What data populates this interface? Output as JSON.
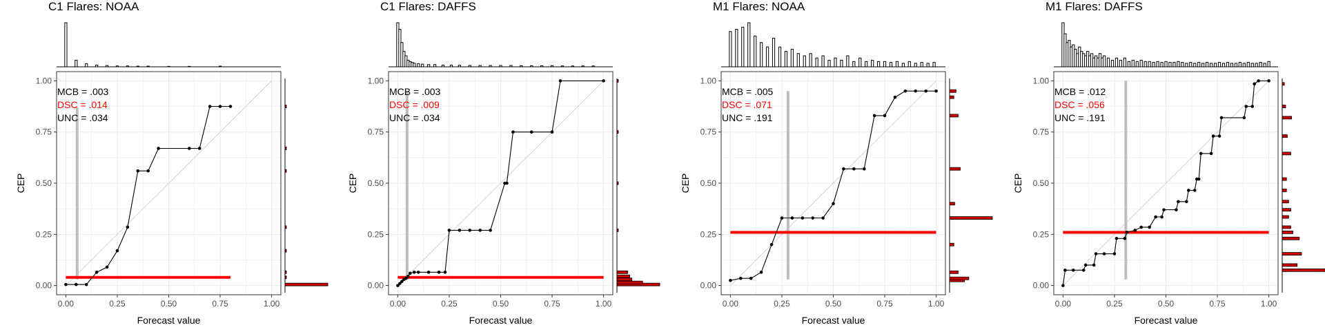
{
  "axis_labels": {
    "x": "Forecast value",
    "y": "CEP"
  },
  "tick_labels": [
    "0.00",
    "0.25",
    "0.50",
    "0.75",
    "1.00"
  ],
  "colors": {
    "stat_dsc": "#ff0000",
    "stat_other": "#000000",
    "reliability_line": "#000000",
    "reference_line": "#ff0000",
    "marker_line": "#bebebe",
    "hist_fill_side": "#cc0000",
    "grid": "#ebebeb"
  },
  "chart_data": [
    {
      "type": "line",
      "title": "C1 Flares: NOAA",
      "xlabel": "Forecast value",
      "ylabel": "CEP",
      "xlim": [
        0,
        1
      ],
      "ylim": [
        0,
        1
      ],
      "grid": true,
      "stats": {
        "mcb": "MCB = .003",
        "dsc": "DSC = .014",
        "unc": "UNC = .034"
      },
      "reference_line": {
        "value": 0.04,
        "x_range": [
          0.0,
          0.8
        ]
      },
      "marker": {
        "x": 0.055,
        "y_range": [
          0.03,
          0.87
        ]
      },
      "reliability_points": [
        [
          0.0,
          0.005
        ],
        [
          0.05,
          0.005
        ],
        [
          0.1,
          0.005
        ],
        [
          0.15,
          0.065
        ],
        [
          0.2,
          0.09
        ],
        [
          0.25,
          0.17
        ],
        [
          0.3,
          0.285
        ],
        [
          0.35,
          0.56
        ],
        [
          0.4,
          0.56
        ],
        [
          0.45,
          0.67
        ],
        [
          0.6,
          0.67
        ],
        [
          0.65,
          0.67
        ],
        [
          0.7,
          0.875
        ],
        [
          0.75,
          0.875
        ],
        [
          0.8,
          0.875
        ]
      ],
      "top_histogram": [
        [
          0.0,
          1.0
        ],
        [
          0.05,
          0.15
        ],
        [
          0.1,
          0.07
        ],
        [
          0.15,
          0.04
        ],
        [
          0.2,
          0.03
        ],
        [
          0.25,
          0.02
        ],
        [
          0.3,
          0.02
        ],
        [
          0.35,
          0.015
        ],
        [
          0.4,
          0.015
        ],
        [
          0.5,
          0.01
        ],
        [
          0.6,
          0.01
        ],
        [
          0.75,
          0.015
        ]
      ],
      "side_histogram": [
        [
          0.005,
          1.0
        ],
        [
          0.04,
          0.03
        ],
        [
          0.065,
          0.03
        ],
        [
          0.17,
          0.02
        ],
        [
          0.285,
          0.02
        ],
        [
          0.56,
          0.02
        ],
        [
          0.67,
          0.02
        ],
        [
          0.875,
          0.02
        ]
      ]
    },
    {
      "type": "line",
      "title": "C1 Flares: DAFFS",
      "xlabel": "Forecast value",
      "ylabel": "CEP",
      "xlim": [
        0,
        1
      ],
      "ylim": [
        0,
        1
      ],
      "grid": true,
      "stats": {
        "mcb": "MCB = .003",
        "dsc": "DSC = .009",
        "unc": "UNC = .034"
      },
      "reference_line": {
        "value": 0.04,
        "x_range": [
          0.0,
          1.0
        ]
      },
      "marker": {
        "x": 0.045,
        "y_range": [
          0.03,
          0.95
        ]
      },
      "reliability_points": [
        [
          0.0,
          0.0
        ],
        [
          0.01,
          0.01
        ],
        [
          0.02,
          0.02
        ],
        [
          0.03,
          0.03
        ],
        [
          0.04,
          0.035
        ],
        [
          0.05,
          0.045
        ],
        [
          0.06,
          0.06
        ],
        [
          0.08,
          0.065
        ],
        [
          0.1,
          0.065
        ],
        [
          0.15,
          0.065
        ],
        [
          0.2,
          0.065
        ],
        [
          0.23,
          0.065
        ],
        [
          0.25,
          0.27
        ],
        [
          0.3,
          0.27
        ],
        [
          0.35,
          0.27
        ],
        [
          0.4,
          0.27
        ],
        [
          0.45,
          0.27
        ],
        [
          0.52,
          0.5
        ],
        [
          0.53,
          0.5
        ],
        [
          0.56,
          0.75
        ],
        [
          0.65,
          0.75
        ],
        [
          0.75,
          0.75
        ],
        [
          0.79,
          1.0
        ],
        [
          1.0,
          1.0
        ]
      ],
      "top_histogram": [
        [
          0.0,
          1.0
        ],
        [
          0.01,
          0.85
        ],
        [
          0.02,
          0.55
        ],
        [
          0.03,
          0.35
        ],
        [
          0.04,
          0.25
        ],
        [
          0.05,
          0.15
        ],
        [
          0.06,
          0.12
        ],
        [
          0.07,
          0.1
        ],
        [
          0.08,
          0.08
        ],
        [
          0.1,
          0.07
        ],
        [
          0.12,
          0.06
        ],
        [
          0.15,
          0.05
        ],
        [
          0.18,
          0.05
        ],
        [
          0.22,
          0.04
        ],
        [
          0.26,
          0.04
        ],
        [
          0.3,
          0.035
        ],
        [
          0.35,
          0.03
        ],
        [
          0.4,
          0.03
        ],
        [
          0.45,
          0.03
        ],
        [
          0.5,
          0.03
        ],
        [
          0.55,
          0.03
        ],
        [
          0.6,
          0.025
        ],
        [
          0.65,
          0.025
        ],
        [
          0.7,
          0.025
        ],
        [
          0.75,
          0.025
        ],
        [
          0.8,
          0.02
        ],
        [
          0.85,
          0.02
        ],
        [
          0.9,
          0.02
        ],
        [
          0.95,
          0.02
        ]
      ],
      "side_histogram": [
        [
          0.005,
          1.0
        ],
        [
          0.015,
          0.6
        ],
        [
          0.03,
          0.35
        ],
        [
          0.045,
          0.3
        ],
        [
          0.065,
          0.25
        ],
        [
          0.27,
          0.03
        ],
        [
          0.5,
          0.02
        ],
        [
          0.75,
          0.02
        ],
        [
          1.0,
          0.02
        ]
      ]
    },
    {
      "type": "line",
      "title": "M1 Flares: NOAA",
      "xlabel": "Forecast value",
      "ylabel": "CEP",
      "xlim": [
        0,
        1
      ],
      "ylim": [
        0,
        1
      ],
      "grid": true,
      "stats": {
        "mcb": "MCB = .005",
        "dsc": "DSC = .071",
        "unc": "UNC = .191"
      },
      "reference_line": {
        "value": 0.26,
        "x_range": [
          0.0,
          1.0
        ]
      },
      "marker": {
        "x": 0.28,
        "y_range": [
          0.03,
          0.95
        ]
      },
      "reliability_points": [
        [
          0.0,
          0.025
        ],
        [
          0.05,
          0.035
        ],
        [
          0.1,
          0.035
        ],
        [
          0.15,
          0.065
        ],
        [
          0.2,
          0.2
        ],
        [
          0.25,
          0.33
        ],
        [
          0.3,
          0.33
        ],
        [
          0.35,
          0.33
        ],
        [
          0.4,
          0.33
        ],
        [
          0.45,
          0.33
        ],
        [
          0.5,
          0.4
        ],
        [
          0.55,
          0.57
        ],
        [
          0.6,
          0.57
        ],
        [
          0.65,
          0.57
        ],
        [
          0.7,
          0.83
        ],
        [
          0.75,
          0.83
        ],
        [
          0.8,
          0.92
        ],
        [
          0.85,
          0.95
        ],
        [
          0.9,
          0.95
        ],
        [
          0.95,
          0.95
        ],
        [
          1.0,
          0.95
        ]
      ],
      "top_histogram": [
        [
          0.0,
          0.8
        ],
        [
          0.03,
          0.85
        ],
        [
          0.06,
          0.9
        ],
        [
          0.09,
          1.0
        ],
        [
          0.12,
          0.7
        ],
        [
          0.15,
          0.55
        ],
        [
          0.18,
          0.45
        ],
        [
          0.21,
          0.65
        ],
        [
          0.24,
          0.45
        ],
        [
          0.27,
          0.35
        ],
        [
          0.3,
          0.4
        ],
        [
          0.33,
          0.3
        ],
        [
          0.36,
          0.25
        ],
        [
          0.39,
          0.3
        ],
        [
          0.42,
          0.2
        ],
        [
          0.45,
          0.25
        ],
        [
          0.48,
          0.15
        ],
        [
          0.51,
          0.2
        ],
        [
          0.54,
          0.15
        ],
        [
          0.57,
          0.25
        ],
        [
          0.6,
          0.12
        ],
        [
          0.63,
          0.2
        ],
        [
          0.66,
          0.12
        ],
        [
          0.69,
          0.15
        ],
        [
          0.72,
          0.12
        ],
        [
          0.75,
          0.12
        ],
        [
          0.78,
          0.1
        ],
        [
          0.81,
          0.12
        ],
        [
          0.84,
          0.08
        ],
        [
          0.87,
          0.12
        ],
        [
          0.9,
          0.08
        ],
        [
          0.93,
          0.1
        ],
        [
          0.96,
          0.08
        ],
        [
          0.99,
          0.1
        ]
      ],
      "side_histogram": [
        [
          0.025,
          0.35
        ],
        [
          0.035,
          0.45
        ],
        [
          0.065,
          0.2
        ],
        [
          0.2,
          0.1
        ],
        [
          0.33,
          1.0
        ],
        [
          0.4,
          0.12
        ],
        [
          0.57,
          0.25
        ],
        [
          0.83,
          0.2
        ],
        [
          0.92,
          0.1
        ],
        [
          0.95,
          0.15
        ]
      ]
    },
    {
      "type": "line",
      "title": "M1 Flares: DAFFS",
      "xlabel": "Forecast value",
      "ylabel": "CEP",
      "xlim": [
        0,
        1
      ],
      "ylim": [
        0,
        1
      ],
      "grid": true,
      "stats": {
        "mcb": "MCB = .012",
        "dsc": "DSC = .056",
        "unc": "UNC = .191"
      },
      "reference_line": {
        "value": 0.26,
        "x_range": [
          0.0,
          1.0
        ]
      },
      "marker": {
        "x": 0.305,
        "y_range": [
          0.03,
          1.0
        ]
      },
      "reliability_points": [
        [
          0.0,
          0.0
        ],
        [
          0.01,
          0.075
        ],
        [
          0.05,
          0.075
        ],
        [
          0.1,
          0.075
        ],
        [
          0.11,
          0.1
        ],
        [
          0.15,
          0.1
        ],
        [
          0.16,
          0.155
        ],
        [
          0.2,
          0.155
        ],
        [
          0.25,
          0.155
        ],
        [
          0.26,
          0.23
        ],
        [
          0.3,
          0.23
        ],
        [
          0.31,
          0.26
        ],
        [
          0.35,
          0.27
        ],
        [
          0.38,
          0.285
        ],
        [
          0.42,
          0.285
        ],
        [
          0.45,
          0.335
        ],
        [
          0.48,
          0.335
        ],
        [
          0.49,
          0.37
        ],
        [
          0.55,
          0.37
        ],
        [
          0.56,
          0.41
        ],
        [
          0.6,
          0.41
        ],
        [
          0.61,
          0.465
        ],
        [
          0.64,
          0.465
        ],
        [
          0.65,
          0.52
        ],
        [
          0.66,
          0.52
        ],
        [
          0.67,
          0.645
        ],
        [
          0.72,
          0.645
        ],
        [
          0.73,
          0.73
        ],
        [
          0.76,
          0.73
        ],
        [
          0.77,
          0.82
        ],
        [
          0.88,
          0.82
        ],
        [
          0.89,
          0.875
        ],
        [
          0.92,
          0.875
        ],
        [
          0.93,
          0.985
        ],
        [
          0.95,
          1.0
        ],
        [
          1.0,
          1.0
        ]
      ],
      "top_histogram": [
        [
          0.0,
          1.0
        ],
        [
          0.01,
          0.75
        ],
        [
          0.02,
          0.55
        ],
        [
          0.03,
          0.6
        ],
        [
          0.04,
          0.45
        ],
        [
          0.05,
          0.5
        ],
        [
          0.06,
          0.4
        ],
        [
          0.07,
          0.3
        ],
        [
          0.08,
          0.45
        ],
        [
          0.09,
          0.35
        ],
        [
          0.1,
          0.3
        ],
        [
          0.11,
          0.25
        ],
        [
          0.12,
          0.35
        ],
        [
          0.13,
          0.25
        ],
        [
          0.14,
          0.3
        ],
        [
          0.15,
          0.2
        ],
        [
          0.16,
          0.25
        ],
        [
          0.17,
          0.2
        ],
        [
          0.18,
          0.3
        ],
        [
          0.19,
          0.2
        ],
        [
          0.2,
          0.25
        ],
        [
          0.22,
          0.2
        ],
        [
          0.24,
          0.15
        ],
        [
          0.26,
          0.2
        ],
        [
          0.28,
          0.15
        ],
        [
          0.3,
          0.2
        ],
        [
          0.32,
          0.12
        ],
        [
          0.34,
          0.15
        ],
        [
          0.36,
          0.12
        ],
        [
          0.38,
          0.15
        ],
        [
          0.4,
          0.12
        ],
        [
          0.42,
          0.12
        ],
        [
          0.44,
          0.1
        ],
        [
          0.46,
          0.12
        ],
        [
          0.48,
          0.1
        ],
        [
          0.5,
          0.12
        ],
        [
          0.52,
          0.1
        ],
        [
          0.54,
          0.1
        ],
        [
          0.56,
          0.12
        ],
        [
          0.58,
          0.1
        ],
        [
          0.6,
          0.08
        ],
        [
          0.62,
          0.1
        ],
        [
          0.64,
          0.08
        ],
        [
          0.66,
          0.1
        ],
        [
          0.68,
          0.08
        ],
        [
          0.7,
          0.1
        ],
        [
          0.72,
          0.08
        ],
        [
          0.74,
          0.08
        ],
        [
          0.76,
          0.1
        ],
        [
          0.78,
          0.08
        ],
        [
          0.8,
          0.1
        ],
        [
          0.82,
          0.08
        ],
        [
          0.84,
          0.08
        ],
        [
          0.86,
          0.1
        ],
        [
          0.88,
          0.08
        ],
        [
          0.9,
          0.1
        ],
        [
          0.92,
          0.08
        ],
        [
          0.94,
          0.08
        ],
        [
          0.96,
          0.1
        ],
        [
          0.98,
          0.08
        ],
        [
          1.0,
          0.12
        ]
      ],
      "side_histogram": [
        [
          0.075,
          1.0
        ],
        [
          0.1,
          0.35
        ],
        [
          0.155,
          0.45
        ],
        [
          0.23,
          0.4
        ],
        [
          0.26,
          0.25
        ],
        [
          0.285,
          0.2
        ],
        [
          0.335,
          0.15
        ],
        [
          0.37,
          0.2
        ],
        [
          0.41,
          0.15
        ],
        [
          0.465,
          0.1
        ],
        [
          0.52,
          0.1
        ],
        [
          0.645,
          0.2
        ],
        [
          0.73,
          0.12
        ],
        [
          0.82,
          0.22
        ],
        [
          0.875,
          0.08
        ],
        [
          0.985,
          0.05
        ]
      ]
    }
  ]
}
